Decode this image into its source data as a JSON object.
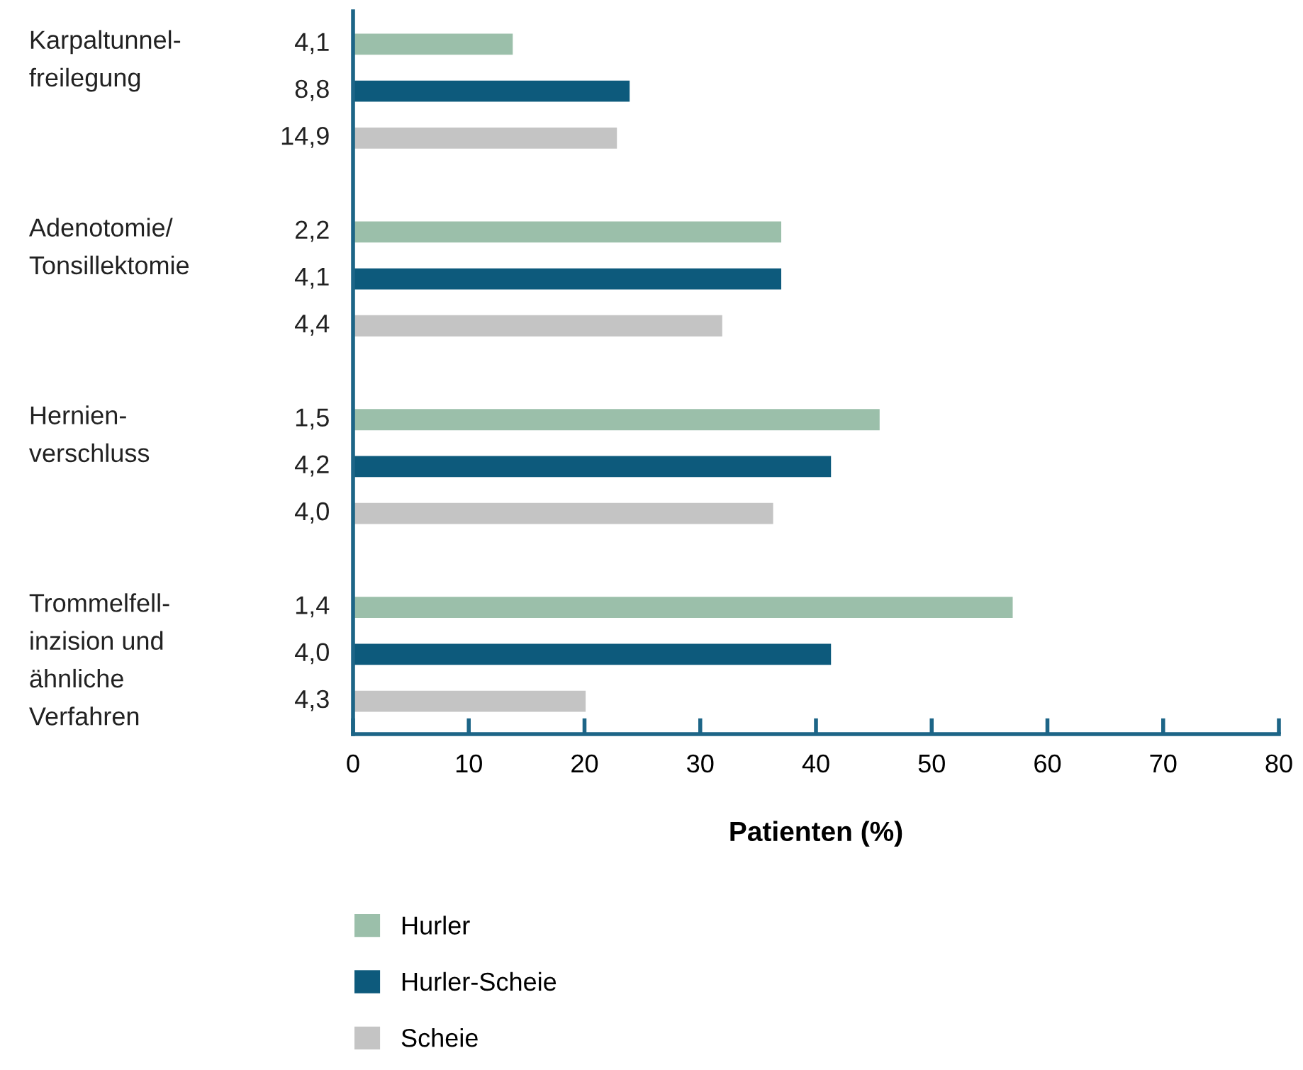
{
  "chart_data": {
    "type": "bar",
    "orientation": "horizontal",
    "xlabel": "Patienten (%)",
    "categories": [
      "Karpaltunnel-\nfreilegung",
      "Adenotomie/\nTonsillektomie",
      "Hernien-\nverschluss",
      "Trommelfell-\ninzision und\nähnliche\nVerfahren"
    ],
    "series": [
      {
        "name": "Hurler",
        "color": "#9bbfaa",
        "values": [
          13.8,
          37.0,
          45.5,
          57.0
        ]
      },
      {
        "name": "Hurler-Scheie",
        "color": "#0d5a7c",
        "values": [
          23.9,
          37.0,
          41.3,
          41.3
        ]
      },
      {
        "name": "Scheie",
        "color": "#c4c4c4",
        "values": [
          22.8,
          31.9,
          36.3,
          20.1
        ]
      }
    ],
    "annotations": [
      "4,1",
      "8,8",
      "14,9",
      "2,2",
      "4,1",
      "4,4",
      "1,5",
      "4,2",
      "4,0",
      "1,4",
      "4,0",
      "4,3"
    ],
    "xlim": [
      0,
      80
    ],
    "xticks": [
      0,
      10,
      20,
      30,
      40,
      50,
      60,
      70,
      80
    ],
    "grid": false,
    "legend": "bottom"
  }
}
